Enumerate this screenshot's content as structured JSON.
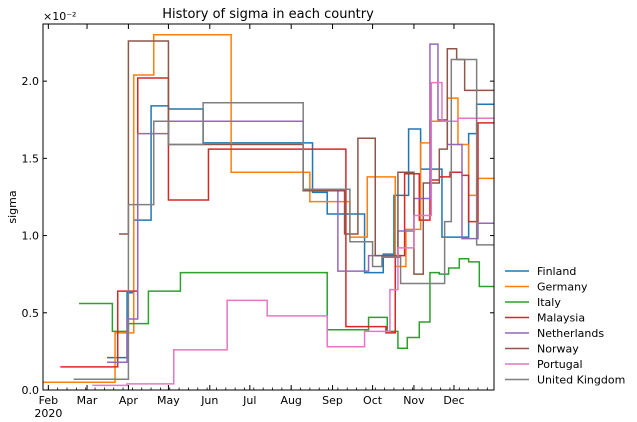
{
  "chart_data": {
    "type": "line",
    "title": "History of sigma in each country",
    "ylabel": "sigma",
    "xlabel": "",
    "y_multiplier": "×10⁻²",
    "ylim": [
      0,
      2.37
    ],
    "xlim": [
      "2020-01-28",
      "2020-12-31"
    ],
    "y_ticks": [
      {
        "value": 0,
        "label": "0.0"
      },
      {
        "value": 0.5,
        "label": "0.5"
      },
      {
        "value": 1.0,
        "label": "1.0"
      },
      {
        "value": 1.5,
        "label": "1.5"
      },
      {
        "value": 2.0,
        "label": "2.0"
      }
    ],
    "x_ticks": [
      {
        "date": "2020-02-01",
        "label": "Feb",
        "sublabel": "2020"
      },
      {
        "date": "2020-03-01",
        "label": "Mar"
      },
      {
        "date": "2020-04-01",
        "label": "Apr"
      },
      {
        "date": "2020-05-01",
        "label": "May"
      },
      {
        "date": "2020-06-01",
        "label": "Jun"
      },
      {
        "date": "2020-07-01",
        "label": "Jul"
      },
      {
        "date": "2020-08-01",
        "label": "Aug"
      },
      {
        "date": "2020-09-01",
        "label": "Sep"
      },
      {
        "date": "2020-10-01",
        "label": "Oct"
      },
      {
        "date": "2020-11-01",
        "label": "Nov"
      },
      {
        "date": "2020-12-01",
        "label": "Dec"
      }
    ],
    "legend_position": "right",
    "grid": false,
    "series": [
      {
        "name": "Finland",
        "color": "#1f77b4",
        "points": [
          [
            "2020-03-16",
            0.21
          ],
          [
            "2020-03-31",
            0.21
          ],
          [
            "2020-03-31",
            0.63
          ],
          [
            "2020-04-05",
            0.63
          ],
          [
            "2020-04-05",
            1.1
          ],
          [
            "2020-04-18",
            1.1
          ],
          [
            "2020-04-18",
            1.84
          ],
          [
            "2020-05-01",
            1.84
          ],
          [
            "2020-05-01",
            1.82
          ],
          [
            "2020-05-27",
            1.82
          ],
          [
            "2020-05-27",
            1.6
          ],
          [
            "2020-08-17",
            1.6
          ],
          [
            "2020-08-17",
            1.28
          ],
          [
            "2020-08-28",
            1.28
          ],
          [
            "2020-08-28",
            1.14
          ],
          [
            "2020-09-25",
            1.14
          ],
          [
            "2020-09-25",
            0.76
          ],
          [
            "2020-10-09",
            0.76
          ],
          [
            "2020-10-09",
            0.88
          ],
          [
            "2020-10-17",
            0.88
          ],
          [
            "2020-10-17",
            1.26
          ],
          [
            "2020-10-28",
            1.26
          ],
          [
            "2020-10-28",
            1.69
          ],
          [
            "2020-11-06",
            1.69
          ],
          [
            "2020-11-06",
            1.43
          ],
          [
            "2020-11-22",
            1.43
          ],
          [
            "2020-11-22",
            0.99
          ],
          [
            "2020-12-12",
            0.99
          ],
          [
            "2020-12-12",
            1.66
          ],
          [
            "2020-12-18",
            1.66
          ],
          [
            "2020-12-18",
            1.85
          ],
          [
            "2020-12-31",
            1.85
          ]
        ]
      },
      {
        "name": "Germany",
        "color": "#ff7f0e",
        "points": [
          [
            "2020-01-28",
            0.05
          ],
          [
            "2020-03-22",
            0.05
          ],
          [
            "2020-03-22",
            0.37
          ],
          [
            "2020-04-05",
            0.37
          ],
          [
            "2020-04-05",
            2.04
          ],
          [
            "2020-04-20",
            2.04
          ],
          [
            "2020-04-20",
            2.3
          ],
          [
            "2020-06-17",
            2.3
          ],
          [
            "2020-06-17",
            1.41
          ],
          [
            "2020-08-15",
            1.41
          ],
          [
            "2020-08-15",
            1.22
          ],
          [
            "2020-09-14",
            1.22
          ],
          [
            "2020-09-14",
            0.99
          ],
          [
            "2020-09-27",
            0.99
          ],
          [
            "2020-09-27",
            1.38
          ],
          [
            "2020-10-18",
            1.38
          ],
          [
            "2020-10-18",
            0.8
          ],
          [
            "2020-10-26",
            0.8
          ],
          [
            "2020-10-26",
            1.04
          ],
          [
            "2020-11-06",
            1.04
          ],
          [
            "2020-11-06",
            1.6
          ],
          [
            "2020-11-13",
            1.6
          ],
          [
            "2020-11-13",
            1.74
          ],
          [
            "2020-11-26",
            1.74
          ],
          [
            "2020-11-26",
            1.89
          ],
          [
            "2020-12-04",
            1.89
          ],
          [
            "2020-12-04",
            1.59
          ],
          [
            "2020-12-12",
            1.59
          ],
          [
            "2020-12-12",
            1.26
          ],
          [
            "2020-12-18",
            1.26
          ],
          [
            "2020-12-18",
            1.37
          ],
          [
            "2020-12-31",
            1.37
          ]
        ]
      },
      {
        "name": "Italy",
        "color": "#2ca02c",
        "points": [
          [
            "2020-02-24",
            0.56
          ],
          [
            "2020-03-20",
            0.56
          ],
          [
            "2020-03-20",
            0.38
          ],
          [
            "2020-04-01",
            0.38
          ],
          [
            "2020-04-01",
            0.43
          ],
          [
            "2020-04-16",
            0.43
          ],
          [
            "2020-04-16",
            0.64
          ],
          [
            "2020-05-10",
            0.64
          ],
          [
            "2020-05-10",
            0.76
          ],
          [
            "2020-08-28",
            0.76
          ],
          [
            "2020-08-28",
            0.39
          ],
          [
            "2020-09-28",
            0.39
          ],
          [
            "2020-09-28",
            0.47
          ],
          [
            "2020-10-12",
            0.47
          ],
          [
            "2020-10-12",
            0.38
          ],
          [
            "2020-10-20",
            0.38
          ],
          [
            "2020-10-20",
            0.27
          ],
          [
            "2020-10-27",
            0.27
          ],
          [
            "2020-10-27",
            0.34
          ],
          [
            "2020-11-05",
            0.34
          ],
          [
            "2020-11-05",
            0.44
          ],
          [
            "2020-11-13",
            0.44
          ],
          [
            "2020-11-13",
            0.76
          ],
          [
            "2020-11-20",
            0.76
          ],
          [
            "2020-11-20",
            0.75
          ],
          [
            "2020-11-27",
            0.75
          ],
          [
            "2020-11-27",
            0.79
          ],
          [
            "2020-12-05",
            0.79
          ],
          [
            "2020-12-05",
            0.85
          ],
          [
            "2020-12-12",
            0.85
          ],
          [
            "2020-12-12",
            0.83
          ],
          [
            "2020-12-20",
            0.83
          ],
          [
            "2020-12-20",
            0.67
          ],
          [
            "2020-12-31",
            0.67
          ]
        ]
      },
      {
        "name": "Malaysia",
        "color": "#d62728",
        "points": [
          [
            "2020-02-10",
            0.15
          ],
          [
            "2020-03-24",
            0.15
          ],
          [
            "2020-03-24",
            0.64
          ],
          [
            "2020-04-08",
            0.64
          ],
          [
            "2020-04-08",
            2.02
          ],
          [
            "2020-05-01",
            2.02
          ],
          [
            "2020-05-01",
            1.23
          ],
          [
            "2020-05-31",
            1.23
          ],
          [
            "2020-05-31",
            1.56
          ],
          [
            "2020-09-11",
            1.56
          ],
          [
            "2020-09-11",
            0.41
          ],
          [
            "2020-10-11",
            0.41
          ],
          [
            "2020-10-11",
            0.37
          ],
          [
            "2020-10-18",
            0.37
          ],
          [
            "2020-10-18",
            0.87
          ],
          [
            "2020-10-25",
            0.87
          ],
          [
            "2020-10-25",
            1.4
          ],
          [
            "2020-11-05",
            1.4
          ],
          [
            "2020-11-05",
            1.1
          ],
          [
            "2020-11-13",
            1.1
          ],
          [
            "2020-11-13",
            1.36
          ],
          [
            "2020-11-20",
            1.36
          ],
          [
            "2020-11-20",
            1.38
          ],
          [
            "2020-11-28",
            1.38
          ],
          [
            "2020-11-28",
            1.41
          ],
          [
            "2020-12-07",
            1.41
          ],
          [
            "2020-12-07",
            1.39
          ],
          [
            "2020-12-12",
            1.39
          ],
          [
            "2020-12-12",
            1.09
          ],
          [
            "2020-12-19",
            1.09
          ],
          [
            "2020-12-19",
            1.73
          ],
          [
            "2020-12-31",
            1.73
          ]
        ]
      },
      {
        "name": "Netherlands",
        "color": "#9467bd",
        "points": [
          [
            "2020-03-16",
            0.18
          ],
          [
            "2020-03-31",
            0.18
          ],
          [
            "2020-03-31",
            0.46
          ],
          [
            "2020-04-08",
            0.46
          ],
          [
            "2020-04-08",
            1.66
          ],
          [
            "2020-05-01",
            1.66
          ],
          [
            "2020-05-01",
            1.74
          ],
          [
            "2020-08-10",
            1.74
          ],
          [
            "2020-08-10",
            1.29
          ],
          [
            "2020-09-05",
            1.29
          ],
          [
            "2020-09-05",
            0.77
          ],
          [
            "2020-09-28",
            0.77
          ],
          [
            "2020-09-28",
            0.87
          ],
          [
            "2020-10-20",
            0.87
          ],
          [
            "2020-10-20",
            1.03
          ],
          [
            "2020-11-01",
            1.03
          ],
          [
            "2020-11-01",
            1.24
          ],
          [
            "2020-11-13",
            1.24
          ],
          [
            "2020-11-13",
            2.24
          ],
          [
            "2020-11-19",
            2.24
          ],
          [
            "2020-11-19",
            1.75
          ],
          [
            "2020-11-26",
            1.75
          ],
          [
            "2020-11-26",
            1.59
          ],
          [
            "2020-12-07",
            1.59
          ],
          [
            "2020-12-07",
            0.98
          ],
          [
            "2020-12-19",
            0.98
          ],
          [
            "2020-12-19",
            1.08
          ],
          [
            "2020-12-31",
            1.08
          ]
        ]
      },
      {
        "name": "Norway",
        "color": "#8c564b",
        "points": [
          [
            "2020-03-25",
            1.01
          ],
          [
            "2020-04-01",
            1.01
          ],
          [
            "2020-04-01",
            2.26
          ],
          [
            "2020-05-01",
            2.26
          ],
          [
            "2020-05-01",
            1.59
          ],
          [
            "2020-08-10",
            1.59
          ],
          [
            "2020-08-10",
            1.29
          ],
          [
            "2020-09-10",
            1.29
          ],
          [
            "2020-09-10",
            1.01
          ],
          [
            "2020-09-20",
            1.01
          ],
          [
            "2020-09-20",
            1.63
          ],
          [
            "2020-10-03",
            1.63
          ],
          [
            "2020-10-03",
            0.87
          ],
          [
            "2020-10-20",
            0.87
          ],
          [
            "2020-10-20",
            1.41
          ],
          [
            "2020-11-01",
            1.41
          ],
          [
            "2020-11-01",
            0.75
          ],
          [
            "2020-11-08",
            0.75
          ],
          [
            "2020-11-08",
            1.34
          ],
          [
            "2020-11-20",
            1.34
          ],
          [
            "2020-11-20",
            1.56
          ],
          [
            "2020-11-26",
            1.56
          ],
          [
            "2020-11-26",
            2.21
          ],
          [
            "2020-12-03",
            2.21
          ],
          [
            "2020-12-03",
            2.14
          ],
          [
            "2020-12-09",
            2.14
          ],
          [
            "2020-12-09",
            1.94
          ],
          [
            "2020-12-31",
            1.94
          ]
        ]
      },
      {
        "name": "Portugal",
        "color": "#e377c2",
        "points": [
          [
            "2020-03-05",
            0.03
          ],
          [
            "2020-03-31",
            0.03
          ],
          [
            "2020-03-31",
            0.04
          ],
          [
            "2020-05-05",
            0.04
          ],
          [
            "2020-05-05",
            0.26
          ],
          [
            "2020-06-14",
            0.26
          ],
          [
            "2020-06-14",
            0.58
          ],
          [
            "2020-07-14",
            0.58
          ],
          [
            "2020-07-14",
            0.48
          ],
          [
            "2020-08-28",
            0.48
          ],
          [
            "2020-08-28",
            0.28
          ],
          [
            "2020-09-25",
            0.28
          ],
          [
            "2020-09-25",
            0.38
          ],
          [
            "2020-10-14",
            0.38
          ],
          [
            "2020-10-14",
            0.65
          ],
          [
            "2020-10-20",
            0.65
          ],
          [
            "2020-10-20",
            0.92
          ],
          [
            "2020-11-01",
            0.92
          ],
          [
            "2020-11-01",
            1.13
          ],
          [
            "2020-11-14",
            1.13
          ],
          [
            "2020-11-14",
            1.99
          ],
          [
            "2020-11-22",
            1.99
          ],
          [
            "2020-11-22",
            1.74
          ],
          [
            "2020-12-04",
            1.74
          ],
          [
            "2020-12-04",
            1.76
          ],
          [
            "2020-12-31",
            1.76
          ]
        ]
      },
      {
        "name": "United Kingdom",
        "color": "#7f7f7f",
        "points": [
          [
            "2020-02-20",
            0.07
          ],
          [
            "2020-04-01",
            0.07
          ],
          [
            "2020-04-01",
            1.2
          ],
          [
            "2020-04-20",
            1.2
          ],
          [
            "2020-04-20",
            1.74
          ],
          [
            "2020-05-01",
            1.74
          ],
          [
            "2020-05-01",
            1.59
          ],
          [
            "2020-05-27",
            1.59
          ],
          [
            "2020-05-27",
            1.86
          ],
          [
            "2020-08-10",
            1.86
          ],
          [
            "2020-08-10",
            1.3
          ],
          [
            "2020-09-14",
            1.3
          ],
          [
            "2020-09-14",
            0.96
          ],
          [
            "2020-10-01",
            0.96
          ],
          [
            "2020-10-01",
            0.8
          ],
          [
            "2020-10-08",
            0.8
          ],
          [
            "2020-10-08",
            0.86
          ],
          [
            "2020-10-22",
            0.86
          ],
          [
            "2020-10-22",
            0.69
          ],
          [
            "2020-11-24",
            0.69
          ],
          [
            "2020-11-24",
            1.09
          ],
          [
            "2020-11-29",
            1.09
          ],
          [
            "2020-11-29",
            2.14
          ],
          [
            "2020-12-18",
            2.14
          ],
          [
            "2020-12-18",
            0.94
          ],
          [
            "2020-12-31",
            0.94
          ]
        ]
      }
    ]
  }
}
